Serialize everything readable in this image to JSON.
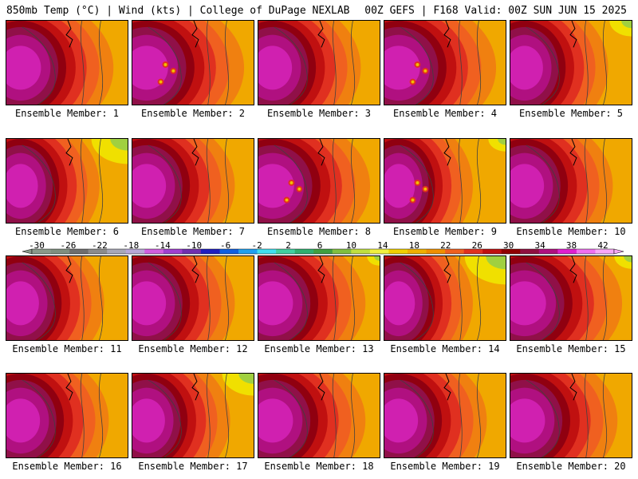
{
  "header": {
    "left_title": "850mb Temp (°C) | Wind (kts) | College of DuPage NEXLAB",
    "right_title": "00Z GEFS | F168 Valid: 00Z SUN JUN 15 2025"
  },
  "colorbar": {
    "labels": [
      "-30",
      "-26",
      "-22",
      "-18",
      "-14",
      "-10",
      "-6",
      "-2",
      "2",
      "6",
      "10",
      "14",
      "18",
      "22",
      "26",
      "30",
      "34",
      "38",
      "42"
    ],
    "colors": [
      "#8a9a8a",
      "#7f8f7f",
      "#6f6f6f",
      "#8c8c8c",
      "#a8a8b8",
      "#b8a8d8",
      "#d060e0",
      "#a040d0",
      "#7030b0",
      "#2020c0",
      "#1060e0",
      "#20a0f0",
      "#40e0f0",
      "#40d0a0",
      "#30b070",
      "#40a040",
      "#80c040",
      "#c0e040",
      "#f0f040",
      "#f0d000",
      "#f0b000",
      "#f09000",
      "#f06020",
      "#e03020",
      "#c01010",
      "#900000",
      "#901040",
      "#b01080",
      "#e020d0",
      "#f070f0",
      "#f8a8f8"
    ]
  },
  "panels": [
    {
      "label": "Ensemble Member: 1"
    },
    {
      "label": "Ensemble Member: 2"
    },
    {
      "label": "Ensemble Member: 3"
    },
    {
      "label": "Ensemble Member: 4"
    },
    {
      "label": "Ensemble Member: 5"
    },
    {
      "label": "Ensemble Member: 6"
    },
    {
      "label": "Ensemble Member: 7"
    },
    {
      "label": "Ensemble Member: 8"
    },
    {
      "label": "Ensemble Member: 9"
    },
    {
      "label": "Ensemble Member: 10"
    },
    {
      "label": "Ensemble Member: 11"
    },
    {
      "label": "Ensemble Member: 12"
    },
    {
      "label": "Ensemble Member: 13"
    },
    {
      "label": "Ensemble Member: 14"
    },
    {
      "label": "Ensemble Member: 15"
    },
    {
      "label": "Ensemble Member: 16"
    },
    {
      "label": "Ensemble Member: 17"
    },
    {
      "label": "Ensemble Member: 18"
    },
    {
      "label": "Ensemble Member: 19"
    },
    {
      "label": "Ensemble Member: 20"
    }
  ]
}
